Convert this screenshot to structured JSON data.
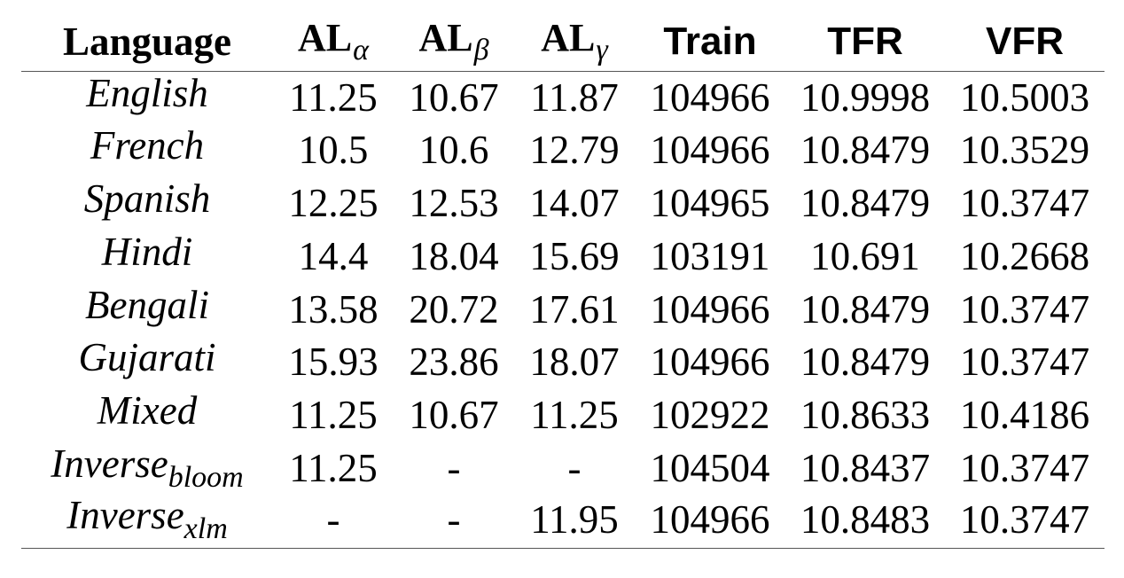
{
  "table": {
    "headers": [
      {
        "main": "Language",
        "sub": ""
      },
      {
        "main": "AL",
        "sub": "α"
      },
      {
        "main": "AL",
        "sub": "β"
      },
      {
        "main": "AL",
        "sub": "γ"
      },
      {
        "main": "Train",
        "sub": ""
      },
      {
        "main": "TFR",
        "sub": ""
      },
      {
        "main": "VFR",
        "sub": ""
      }
    ],
    "rows": [
      {
        "language": "English",
        "language_sub": "",
        "al_alpha": "11.25",
        "al_beta": "10.67",
        "al_gamma": "11.87",
        "train": "104966",
        "tfr": "10.9998",
        "vfr": "10.5003"
      },
      {
        "language": "French",
        "language_sub": "",
        "al_alpha": "10.5",
        "al_beta": "10.6",
        "al_gamma": "12.79",
        "train": "104966",
        "tfr": "10.8479",
        "vfr": "10.3529"
      },
      {
        "language": "Spanish",
        "language_sub": "",
        "al_alpha": "12.25",
        "al_beta": "12.53",
        "al_gamma": "14.07",
        "train": "104965",
        "tfr": "10.8479",
        "vfr": "10.3747"
      },
      {
        "language": "Hindi",
        "language_sub": "",
        "al_alpha": "14.4",
        "al_beta": "18.04",
        "al_gamma": "15.69",
        "train": "103191",
        "tfr": "10.691",
        "vfr": "10.2668"
      },
      {
        "language": "Bengali",
        "language_sub": "",
        "al_alpha": "13.58",
        "al_beta": "20.72",
        "al_gamma": "17.61",
        "train": "104966",
        "tfr": "10.8479",
        "vfr": "10.3747"
      },
      {
        "language": "Gujarati",
        "language_sub": "",
        "al_alpha": "15.93",
        "al_beta": "23.86",
        "al_gamma": "18.07",
        "train": "104966",
        "tfr": "10.8479",
        "vfr": "10.3747"
      },
      {
        "language": "Mixed",
        "language_sub": "",
        "al_alpha": "11.25",
        "al_beta": "10.67",
        "al_gamma": "11.25",
        "train": "102922",
        "tfr": "10.8633",
        "vfr": "10.4186"
      },
      {
        "language": "Inverse",
        "language_sub": "bloom",
        "al_alpha": "11.25",
        "al_beta": "-",
        "al_gamma": "-",
        "train": "104504",
        "tfr": "10.8437",
        "vfr": "10.3747"
      },
      {
        "language": "Inverse",
        "language_sub": "xlm",
        "al_alpha": "-",
        "al_beta": "-",
        "al_gamma": "11.95",
        "train": "104966",
        "tfr": "10.8483",
        "vfr": "10.3747"
      }
    ]
  }
}
